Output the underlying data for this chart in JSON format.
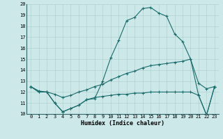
{
  "xlabel": "Humidex (Indice chaleur)",
  "bg_color": "#cce8e8",
  "grid_color": "#aacccc",
  "line_color": "#1a6b6b",
  "hours": [
    0,
    1,
    2,
    3,
    4,
    5,
    6,
    7,
    8,
    9,
    10,
    11,
    12,
    13,
    14,
    15,
    16,
    17,
    18,
    19,
    20,
    21,
    22,
    23
  ],
  "line_max": [
    12.5,
    12.0,
    12.0,
    11.0,
    10.2,
    10.5,
    10.8,
    11.3,
    11.4,
    13.0,
    15.1,
    16.7,
    18.5,
    18.8,
    19.6,
    19.7,
    19.2,
    18.9,
    17.3,
    16.6,
    15.0,
    11.7,
    9.9,
    12.5
  ],
  "line_mean": [
    12.5,
    12.1,
    12.0,
    11.8,
    11.5,
    11.7,
    12.0,
    12.2,
    12.5,
    12.7,
    13.1,
    13.4,
    13.7,
    13.9,
    14.2,
    14.4,
    14.5,
    14.6,
    14.7,
    14.8,
    15.0,
    12.8,
    12.3,
    12.5
  ],
  "line_min": [
    12.5,
    12.0,
    12.0,
    11.0,
    10.2,
    10.5,
    10.8,
    11.3,
    11.5,
    11.6,
    11.7,
    11.8,
    11.8,
    11.9,
    11.9,
    12.0,
    12.0,
    12.0,
    12.0,
    12.0,
    12.0,
    11.7,
    9.9,
    12.5
  ],
  "ylim": [
    10,
    20
  ],
  "xlim": [
    -0.5,
    23.5
  ],
  "yticks": [
    10,
    11,
    12,
    13,
    14,
    15,
    16,
    17,
    18,
    19,
    20
  ],
  "xticks": [
    0,
    1,
    2,
    3,
    4,
    5,
    6,
    7,
    8,
    9,
    10,
    11,
    12,
    13,
    14,
    15,
    16,
    17,
    18,
    19,
    20,
    21,
    22,
    23
  ],
  "xlabel_fontsize": 6.0,
  "tick_fontsize": 5.0
}
